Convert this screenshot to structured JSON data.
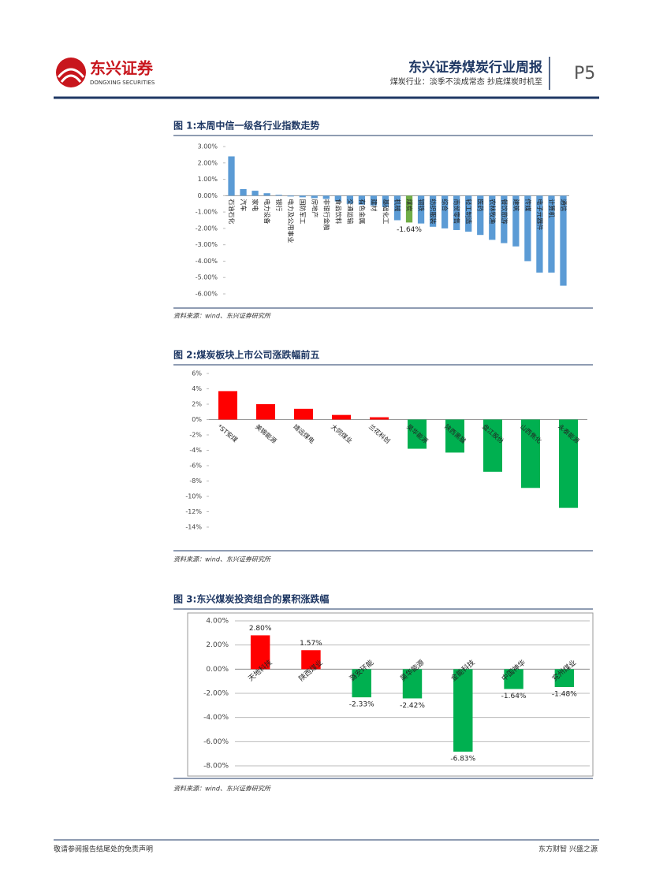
{
  "header": {
    "logo_cn": "东兴证券",
    "logo_en": "DONGXING SECURITIES",
    "title": "东兴证券煤炭行业周报",
    "subtitle": "煤炭行业：淡季不淡成常态 抄底煤炭时机至",
    "page": "P5"
  },
  "charts": [
    {
      "type": "bar",
      "title": "图 1:本周中信一级各行业指数走势",
      "source": "资料来源：wind、东兴证券研究所",
      "categories": [
        "石油石化",
        "汽车",
        "家电",
        "电力设备",
        "银行",
        "电力及公用事业",
        "国防军工",
        "房地产",
        "非银行金融",
        "食品饮料",
        "交通运输",
        "有色金属",
        "建材",
        "基础化工",
        "机械",
        "煤炭",
        "钢铁",
        "纺织服装",
        "综合",
        "商贸零售",
        "轻工制造",
        "医药",
        "农林牧渔",
        "餐饮旅游",
        "建筑",
        "传媒",
        "电子元器件",
        "计算机",
        "通信"
      ],
      "values": [
        2.4,
        0.4,
        0.3,
        0.15,
        0.05,
        -0.05,
        -0.1,
        -0.15,
        -0.2,
        -0.35,
        -0.5,
        -0.55,
        -0.6,
        -0.7,
        -1.5,
        -1.64,
        -1.7,
        -1.9,
        -2.0,
        -2.1,
        -2.2,
        -2.4,
        -2.7,
        -2.9,
        -3.1,
        -4.0,
        -4.7,
        -4.7,
        -5.5
      ],
      "value_labels": [
        null,
        null,
        null,
        null,
        null,
        null,
        null,
        null,
        null,
        null,
        null,
        null,
        null,
        null,
        null,
        "-1.64%",
        null,
        null,
        null,
        null,
        null,
        null,
        null,
        null,
        null,
        null,
        null,
        null,
        null
      ],
      "color": "#5b9bd5",
      "highlight_color": "#70ad47",
      "highlight": "煤炭",
      "ylim": [
        -6,
        3
      ],
      "yticks": [
        {
          "value": 3,
          "label": "3.00%"
        },
        {
          "value": 2,
          "label": "2.00%"
        },
        {
          "value": 1,
          "label": "1.00%"
        },
        {
          "value": 0,
          "label": "0.00%"
        },
        {
          "value": -1,
          "label": "-1.00%"
        },
        {
          "value": -2,
          "label": "-2.00%"
        },
        {
          "value": -3,
          "label": "-3.00%"
        },
        {
          "value": -4,
          "label": "-4.00%"
        },
        {
          "value": -5,
          "label": "-5.00%"
        },
        {
          "value": -6,
          "label": "-6.00%"
        }
      ],
      "grid": false
    },
    {
      "type": "bar",
      "title": "图 2:煤炭板块上市公司涨跌幅前五",
      "source": "资料来源：wind、东兴证券研究所",
      "categories": [
        "*ST安煤",
        "美锦能源",
        "靖远煤电",
        "大同煤业",
        "兰花科创",
        "昊华能源",
        "陕西黑猫",
        "盘江股份",
        "山西焦化",
        "永泰能源"
      ],
      "values": [
        3.7,
        2.0,
        1.4,
        0.6,
        0.3,
        -3.8,
        -4.3,
        -6.8,
        -8.9,
        -11.5
      ],
      "positive_color": "#ff0000",
      "negative_color": "#00b050",
      "ylim": [
        -14,
        6
      ],
      "yticks": [
        {
          "value": 6,
          "label": "6%"
        },
        {
          "value": 4,
          "label": "4%"
        },
        {
          "value": 2,
          "label": "2%"
        },
        {
          "value": 0,
          "label": "0%"
        },
        {
          "value": -2,
          "label": "-2%"
        },
        {
          "value": -4,
          "label": "-4%"
        },
        {
          "value": -6,
          "label": "-6%"
        },
        {
          "value": -8,
          "label": "-8%"
        },
        {
          "value": -10,
          "label": "-10%"
        },
        {
          "value": -12,
          "label": "-12%"
        },
        {
          "value": -14,
          "label": "-14%"
        }
      ],
      "grid": false
    },
    {
      "type": "bar",
      "title": "图 3:东兴煤炭投资组合的累积涨跌幅",
      "source": "资料来源：wind、东兴证券研究所",
      "categories": [
        "天地科技",
        "陕西煤业",
        "潞安环能",
        "昊华能源",
        "金能科技",
        "中国神华",
        "兖州煤业"
      ],
      "values": [
        2.8,
        1.57,
        -2.33,
        -2.42,
        -6.83,
        -1.64,
        -1.48
      ],
      "value_labels": [
        "2.80%",
        "1.57%",
        "-2.33%",
        "-2.42%",
        "-6.83%",
        "-1.64%",
        "-1.48%"
      ],
      "positive_color": "#ff0000",
      "negative_color": "#00b050",
      "ylim": [
        -8,
        4
      ],
      "yticks": [
        {
          "value": 4,
          "label": "4.00%"
        },
        {
          "value": 2,
          "label": "2.00%"
        },
        {
          "value": 0,
          "label": "0.00%"
        },
        {
          "value": -2,
          "label": "-2.00%"
        },
        {
          "value": -4,
          "label": "-4.00%"
        },
        {
          "value": -6,
          "label": "-6.00%"
        },
        {
          "value": -8,
          "label": "-8.00%"
        }
      ],
      "grid": true
    }
  ],
  "footer": {
    "left": "敬请参阅报告结尾处的免责声明",
    "right": "东方财智 兴盛之源"
  }
}
